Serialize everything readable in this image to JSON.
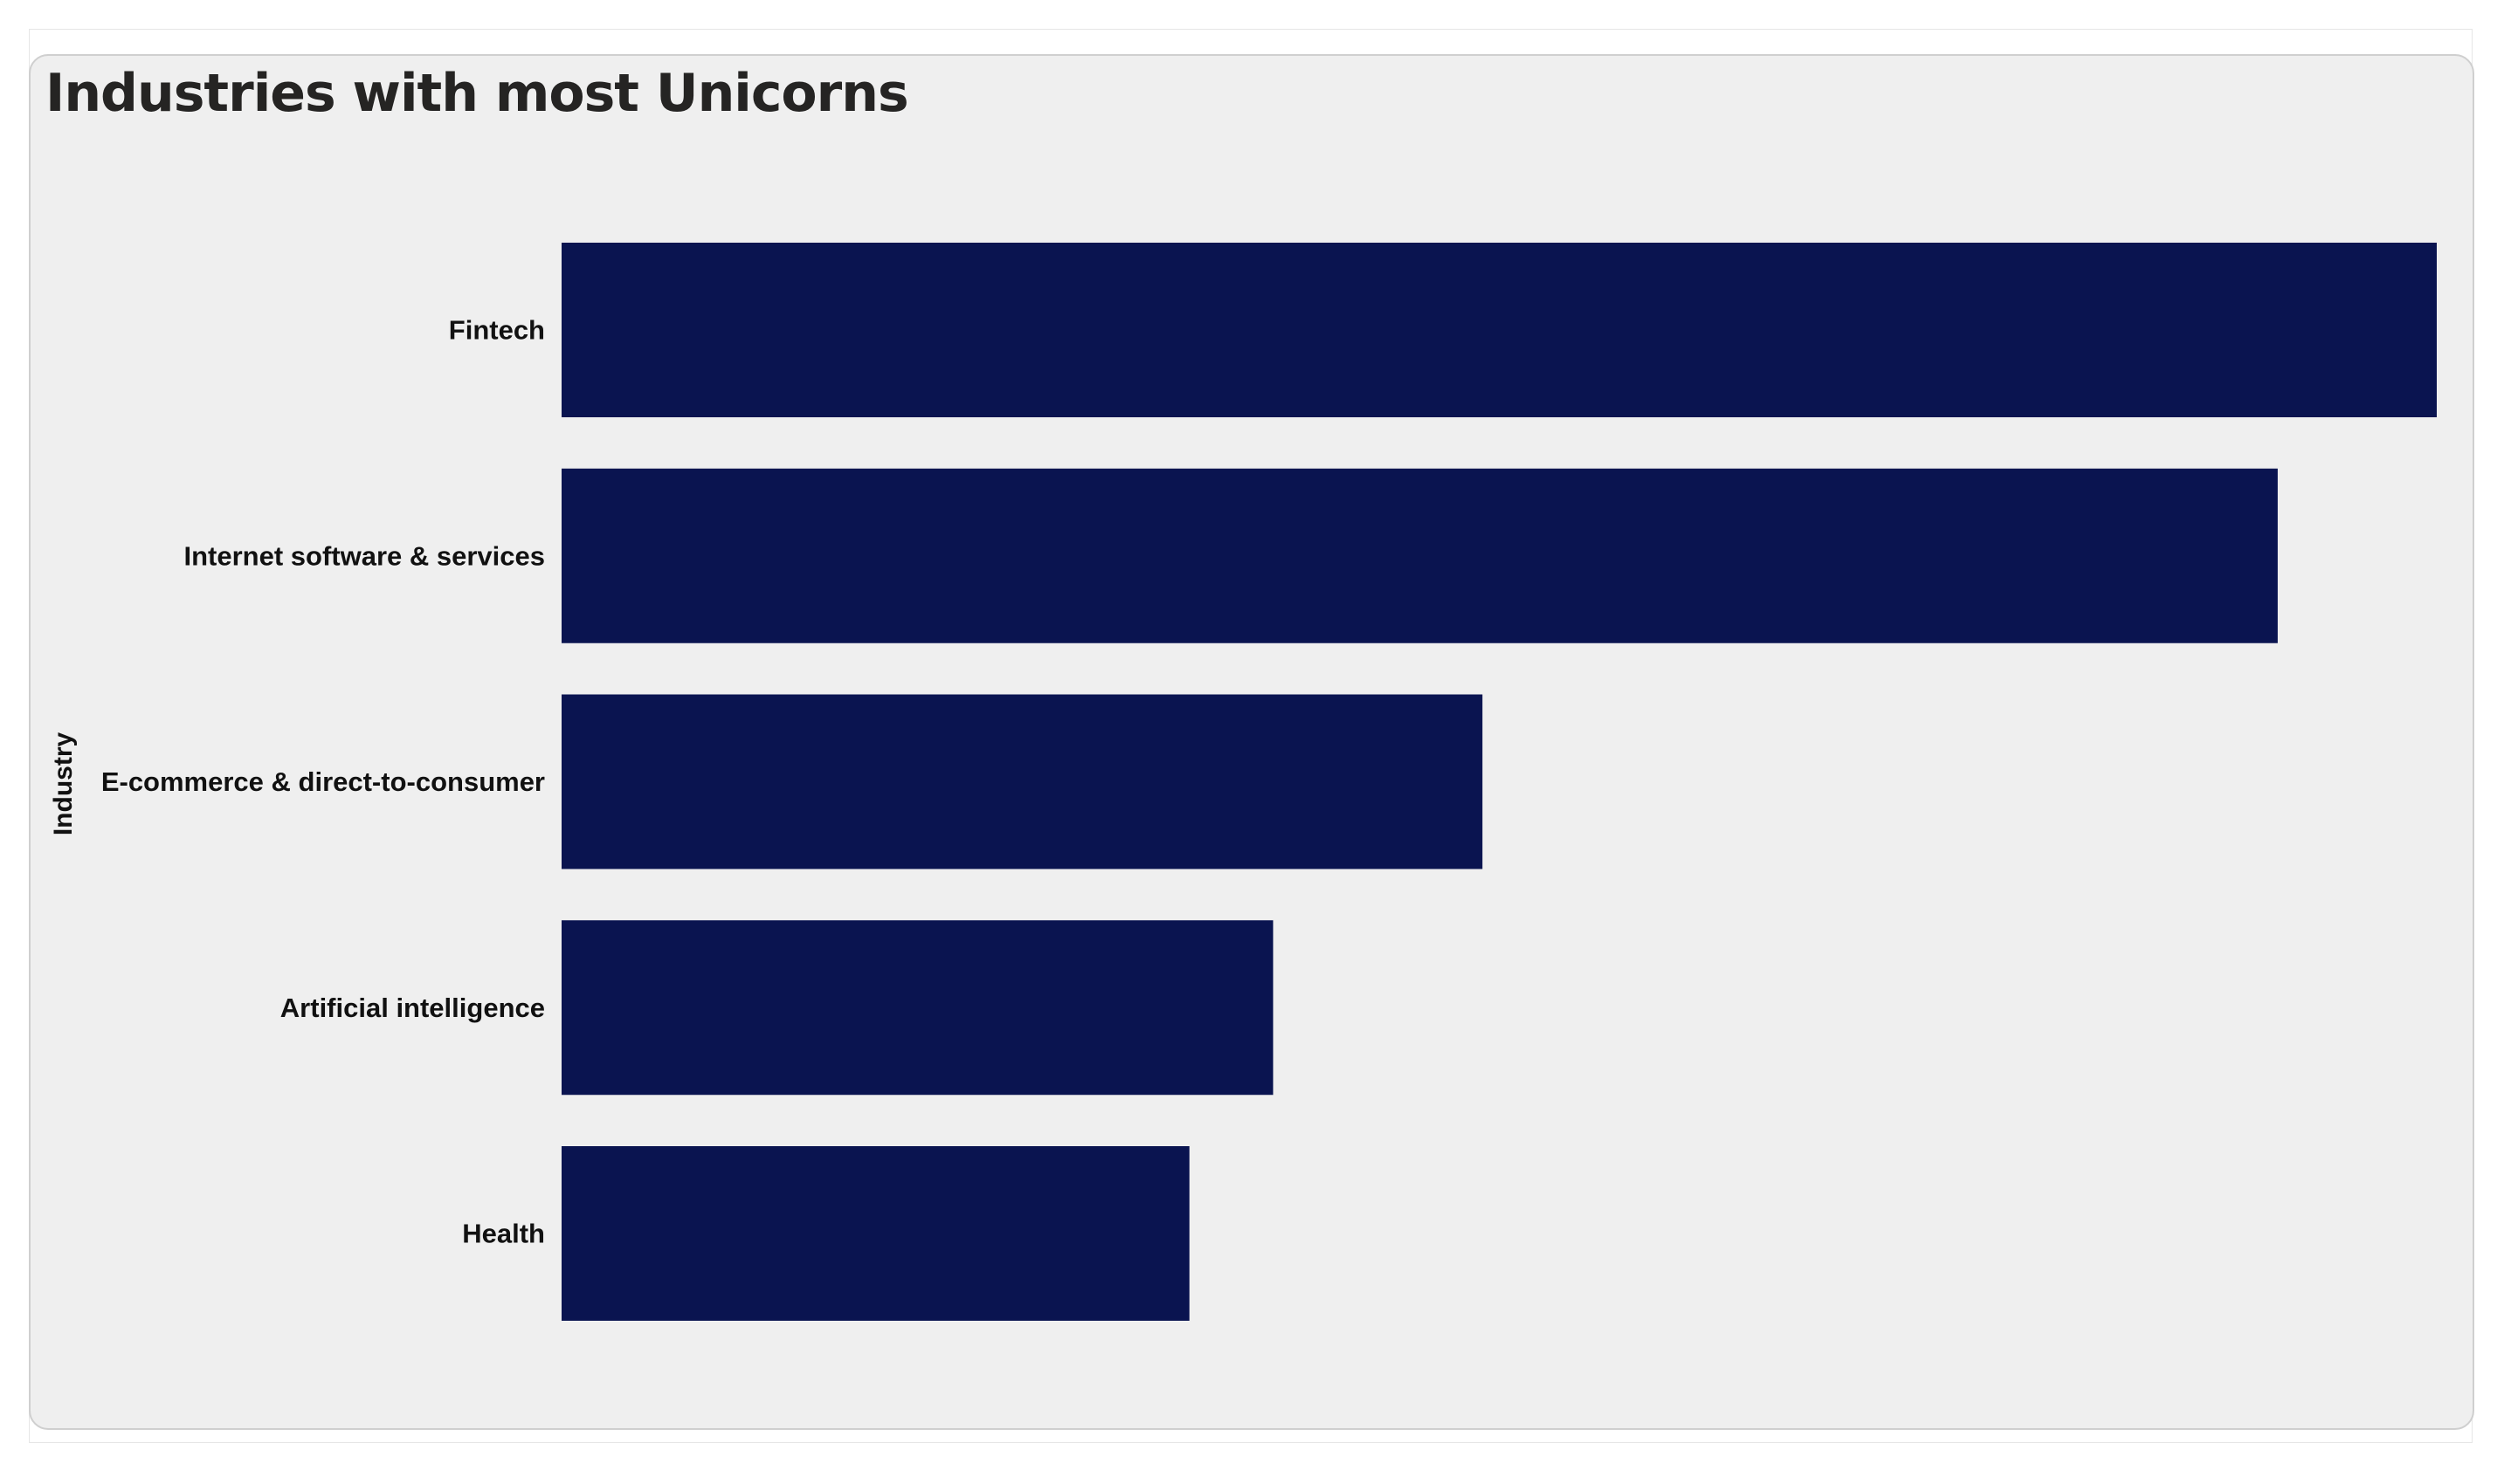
{
  "chart_data": {
    "type": "bar",
    "orientation": "horizontal",
    "title": "Industries with most Unicorns",
    "ylabel": "Industry",
    "xlabel": "",
    "categories": [
      "Fintech",
      "Internet software & services",
      "E-commerce & direct-to-consumer",
      "Artificial intelligence",
      "Health"
    ],
    "values": [
      224,
      205,
      110,
      85,
      75
    ],
    "xlim": [
      0,
      224
    ],
    "grid": false,
    "legend": "none",
    "bar_color": "#0a1450"
  }
}
